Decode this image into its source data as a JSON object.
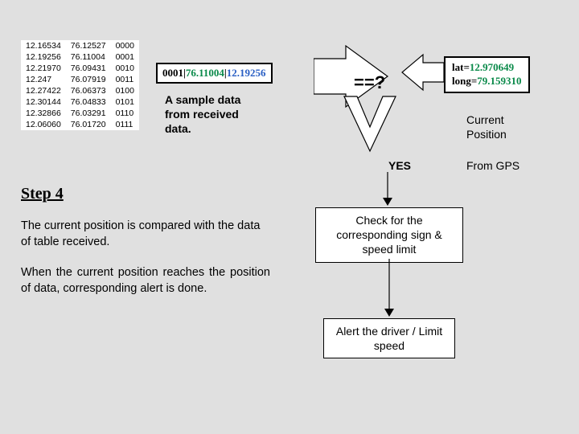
{
  "table": {
    "rows": [
      [
        "12.16534",
        "76.12527",
        "0000"
      ],
      [
        "12.19256",
        "76.11004",
        "0001"
      ],
      [
        "12.21970",
        "76.09431",
        "0010"
      ],
      [
        "12.247",
        "76.07919",
        "0011"
      ],
      [
        "12.27422",
        "76.06373",
        "0100"
      ],
      [
        "12.30144",
        "76.04833",
        "0101"
      ],
      [
        "12.32866",
        "76.03291",
        "0110"
      ],
      [
        "12.06060",
        "76.01720",
        "0111"
      ]
    ]
  },
  "sample": {
    "part1": "0001",
    "sep1": "|",
    "part2": "76.11004",
    "sep2": "|",
    "part3": "12.19256"
  },
  "latlong": {
    "latLabel": "lat=",
    "latVal": "12.970649",
    "longLabel": "long=",
    "longVal": "79.159310"
  },
  "captions": {
    "sample": "A sample data\nfrom received\ndata.",
    "currentPos": "Current\nPosition",
    "fromGps": "From GPS",
    "eq": "==?",
    "yes": "YES"
  },
  "step": {
    "title": "Step 4",
    "p1": "The current position is compared with the data of table received.",
    "p2": "When the current position reaches the position of data, corresponding alert is done."
  },
  "flow": {
    "box1": "Check for the corresponding sign & speed limit",
    "box2": "Alert the driver / Limit speed"
  },
  "colors": {
    "bg": "#e0e0e0",
    "green": "#0a8a4a",
    "blue": "#2a5fc4"
  }
}
